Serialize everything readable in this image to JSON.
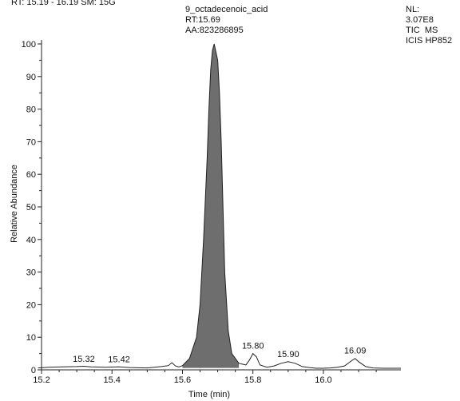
{
  "chart_data": {
    "type": "line",
    "title": "",
    "header_text": "RT: 15.19 - 16.19 SM: 15G",
    "xlabel": "Time (min)",
    "ylabel": "Relative Abundance",
    "xlim": [
      15.2,
      16.22
    ],
    "ylim": [
      0,
      100
    ],
    "x_ticks": [
      "15.2",
      "15.4",
      "15.6",
      "15.8",
      "16.0"
    ],
    "x_tick_values": [
      15.2,
      15.4,
      15.6,
      15.8,
      16.0
    ],
    "y_ticks": [
      "0",
      "10",
      "20",
      "30",
      "40",
      "50",
      "60",
      "70",
      "80",
      "90",
      "100"
    ],
    "y_tick_values": [
      0,
      10,
      20,
      30,
      40,
      50,
      60,
      70,
      80,
      90,
      100
    ],
    "grid": false,
    "main_peak": {
      "name": "9_octadecenoic_acid",
      "rt_label": "RT:15.69",
      "area_label": "AA:823286895",
      "x": 15.69,
      "y": 100
    },
    "info": {
      "nl_label": "NL:",
      "nl_value": "3.07E8",
      "mode": "TIC  MS",
      "source": "ICIS HP852"
    },
    "peak_labels": [
      {
        "text": "15.32",
        "x": 15.32,
        "y": 1.0
      },
      {
        "text": "15.42",
        "x": 15.42,
        "y": 0.8
      },
      {
        "text": "15.80",
        "x": 15.8,
        "y": 5.0
      },
      {
        "text": "15.90",
        "x": 15.9,
        "y": 2.5
      },
      {
        "text": "16.09",
        "x": 16.09,
        "y": 3.5
      }
    ],
    "series": [
      {
        "x": [
          15.19,
          15.22,
          15.26,
          15.3,
          15.32,
          15.34,
          15.38,
          15.42,
          15.45,
          15.5,
          15.54,
          15.56,
          15.57,
          15.58,
          15.59,
          15.6,
          15.62,
          15.64,
          15.65,
          15.66,
          15.67,
          15.675,
          15.68,
          15.685,
          15.69,
          15.7,
          15.705,
          15.71,
          15.715,
          15.72,
          15.73,
          15.74,
          15.76,
          15.78,
          15.79,
          15.8,
          15.81,
          15.82,
          15.84,
          15.86,
          15.88,
          15.9,
          15.92,
          15.94,
          15.96,
          15.98,
          16.0,
          16.02,
          16.04,
          16.06,
          16.08,
          16.09,
          16.1,
          16.12,
          16.14,
          16.17,
          16.2,
          16.22
        ],
        "y": [
          0.6,
          0.8,
          0.9,
          1.0,
          1.1,
          0.9,
          0.8,
          0.9,
          0.7,
          0.6,
          1.0,
          1.3,
          2.2,
          1.2,
          0.9,
          1.3,
          3.5,
          10,
          20,
          40,
          65,
          80,
          92,
          98,
          100,
          95,
          85,
          70,
          50,
          30,
          12,
          5,
          2,
          1.5,
          3,
          5.0,
          4,
          1.5,
          0.8,
          1.2,
          2,
          2.5,
          2.0,
          1.0,
          0.7,
          0.5,
          0.5,
          0.6,
          0.8,
          1.2,
          2.8,
          3.5,
          2.5,
          1.0,
          0.6,
          0.5,
          0.5,
          0.5
        ]
      }
    ]
  }
}
